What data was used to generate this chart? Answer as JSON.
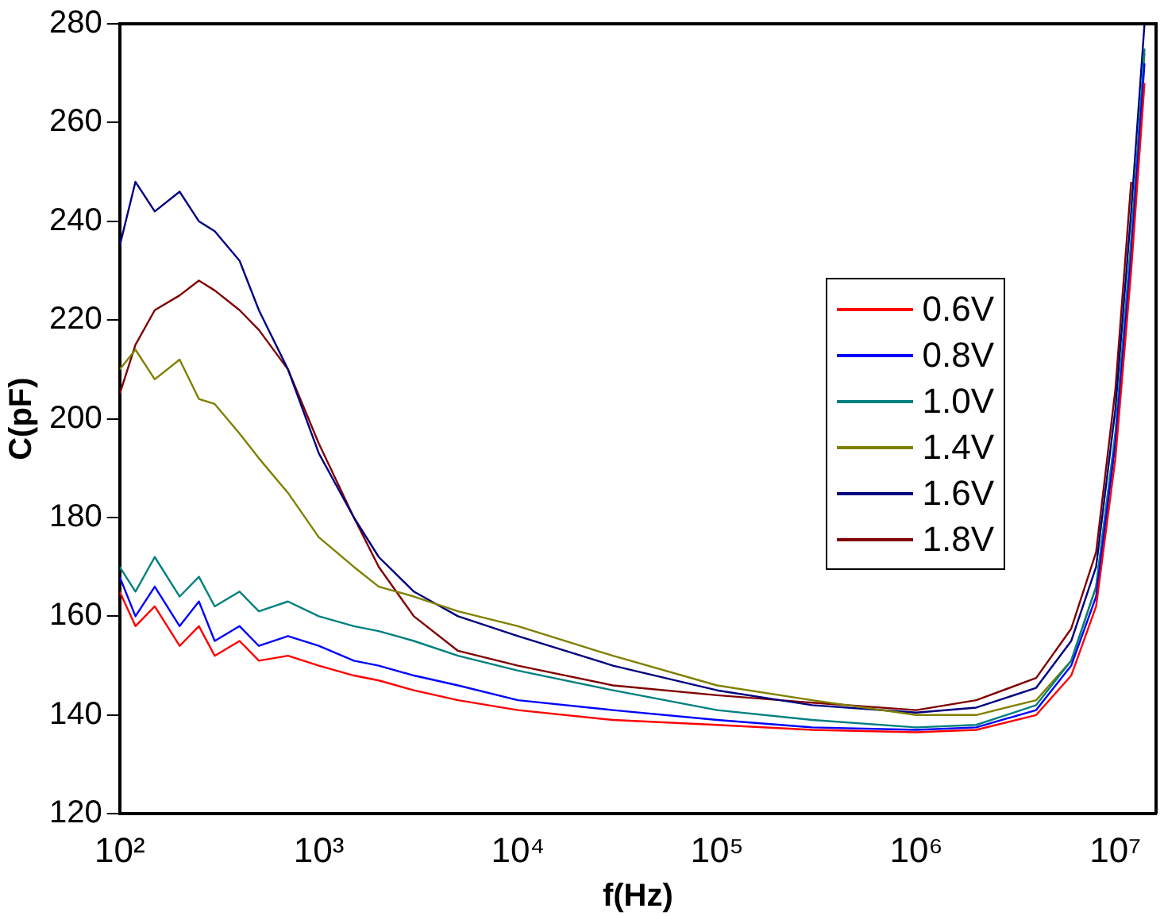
{
  "chart_data": {
    "type": "line",
    "xlabel": "f(Hz)",
    "ylabel": "C(pF)",
    "log": "x",
    "xlim": [
      100,
      16000000
    ],
    "xticks": [
      {
        "value": 100,
        "label": "10²"
      },
      {
        "value": 1000,
        "label": "10³"
      },
      {
        "value": 10000,
        "label": "10⁴"
      },
      {
        "value": 100000,
        "label": "10⁵"
      },
      {
        "value": 1000000,
        "label": "10⁶"
      },
      {
        "value": 10000000,
        "label": "10⁷"
      }
    ],
    "ylim": [
      120,
      280
    ],
    "yticks": [
      120,
      140,
      160,
      180,
      200,
      220,
      240,
      260,
      280
    ],
    "grid": false,
    "legend": "right",
    "marker": "none",
    "line_style": "solid",
    "x": [
      100,
      120,
      150,
      200,
      250,
      300,
      400,
      500,
      700,
      1000,
      1500,
      2000,
      3000,
      5000,
      10000,
      30000,
      100000,
      300000,
      1000000,
      2000000,
      4000000,
      6000000,
      8000000,
      10000000,
      12000000,
      14000000
    ],
    "series": [
      {
        "name": "0.6V",
        "color": "#ff0000",
        "values": [
          165,
          158,
          162,
          154,
          158,
          152,
          155,
          151,
          152,
          150,
          148,
          147,
          145,
          143,
          141,
          139,
          138,
          137,
          136.5,
          137,
          140,
          148,
          162,
          192,
          230,
          268
        ]
      },
      {
        "name": "0.8V",
        "color": "#0000ff",
        "values": [
          168,
          160,
          166,
          158,
          163,
          155,
          158,
          154,
          156,
          154,
          151,
          150,
          148,
          146,
          143,
          141,
          139,
          137.5,
          137,
          137.5,
          141,
          150,
          164,
          195,
          233,
          272
        ]
      },
      {
        "name": "1.0V",
        "color": "#008080",
        "values": [
          170,
          165,
          172,
          164,
          168,
          162,
          165,
          161,
          163,
          160,
          158,
          157,
          155,
          152,
          149,
          145,
          141,
          139,
          137.5,
          138,
          142,
          151,
          166,
          197,
          236,
          275
        ]
      },
      {
        "name": "1.4V",
        "color": "#808000",
        "values": [
          210,
          214,
          208,
          212,
          204,
          203,
          197,
          192,
          185,
          176,
          170,
          166,
          164,
          161,
          158,
          152,
          146,
          143,
          140,
          140,
          143,
          151,
          166,
          197,
          236,
          274
        ]
      },
      {
        "name": "1.6V",
        "color": "#000080",
        "values": [
          235,
          248,
          242,
          246,
          240,
          238,
          232,
          222,
          210,
          193,
          180,
          172,
          165,
          160,
          156,
          150,
          145,
          142,
          140.5,
          141.5,
          145.5,
          155,
          170,
          202,
          242,
          280
        ]
      },
      {
        "name": "1.8V",
        "color": "#800000",
        "values": [
          205,
          215,
          222,
          225,
          228,
          226,
          222,
          218,
          210,
          195,
          180,
          170,
          160,
          153,
          150,
          146,
          144,
          142.5,
          141,
          143,
          147.5,
          157.5,
          173,
          206,
          248,
          null
        ]
      }
    ]
  }
}
